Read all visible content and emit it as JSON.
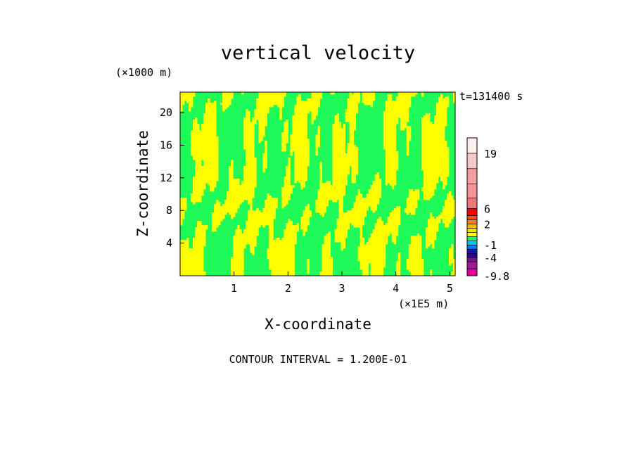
{
  "chart_data": {
    "type": "heatmap",
    "title": "vertical velocity",
    "xlabel": "X-coordinate",
    "ylabel": "Z-coordinate",
    "x_unit": "(×1E5 m)",
    "y_unit": "(×1000 m)",
    "time_label": "t=131400 s",
    "footer": "CONTOUR INTERVAL = 1.200E-01",
    "xlim": [
      0,
      5.1
    ],
    "ylim": [
      0,
      22.5
    ],
    "x_ticks": [
      1,
      2,
      3,
      4,
      5
    ],
    "y_ticks": [
      4,
      8,
      12,
      16,
      20
    ],
    "colorbar": {
      "levels": [
        -9.8,
        -8,
        -6,
        -4,
        -3,
        -2,
        -1,
        0,
        0.5,
        1,
        1.5,
        2,
        3,
        4,
        6,
        9,
        13,
        16,
        19,
        22
      ],
      "colors": [
        "#e6009a",
        "#a01896",
        "#701890",
        "#280a8c",
        "#1414c8",
        "#0078ff",
        "#00c8ff",
        "#1efa5a",
        "#ffff00",
        "#f5e100",
        "#ffb400",
        "#ff8200",
        "#f0501e",
        "#ff0000",
        "#f07878",
        "#f09696",
        "#f0a0a0",
        "#f5c8c8",
        "#fff0f0"
      ],
      "labels": [
        "19",
        "6",
        "2",
        "-1",
        "-4",
        "-9.8"
      ],
      "label_values": [
        19,
        6,
        2,
        -1,
        -4,
        -9.8
      ]
    },
    "field_colors": {
      "negative": "#1efa5a",
      "positive": "#ffff00"
    }
  }
}
